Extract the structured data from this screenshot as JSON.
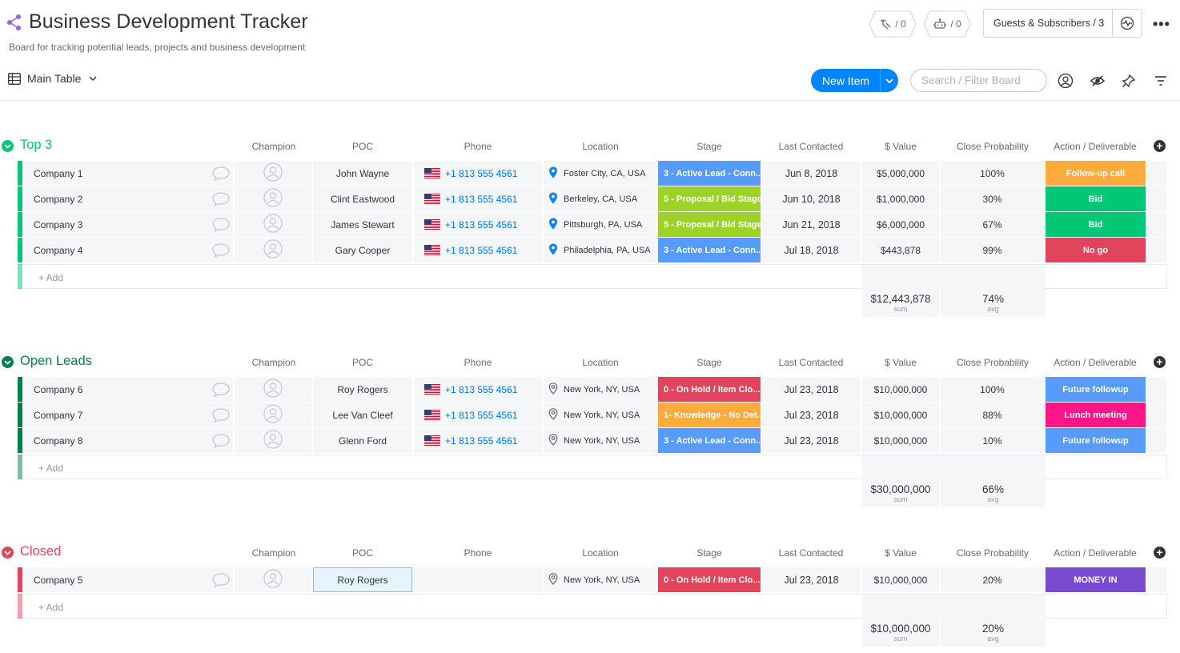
{
  "board": {
    "title": "Business Development Tracker",
    "description": "Board for tracking potential leads, projects and business development"
  },
  "header": {
    "activity_count": "/ 0",
    "integrations_count": "/ 0",
    "guests_label": "Guests & Subscribers / 3",
    "more_label": "•••"
  },
  "toolbar": {
    "view_label": "Main Table",
    "new_item_label": "New Item",
    "search_placeholder": "Search / Filter Board"
  },
  "columns": [
    "Champion",
    "POC",
    "Phone",
    "Location",
    "Stage",
    "Last Contacted",
    "$ Value",
    "Close Probability",
    "Action / Deliverable"
  ],
  "add_item_label": "+ Add",
  "sum_label": "sum",
  "avg_label": "avg",
  "colors": {
    "top3": "#00c875",
    "open_leads": "#037f4c",
    "closed": "#e2445c",
    "stage_active": "#579bfc",
    "stage_proposal": "#9cd326",
    "stage_hold": "#e2445c",
    "stage_knowledge": "#fdab3d",
    "act_followup_call": "#fdab3d",
    "act_bid": "#00c875",
    "act_nogo": "#e2445c",
    "act_future": "#579bfc",
    "act_lunch": "#ff158a",
    "act_money": "#784bd1",
    "link_blue": "#0073ea"
  },
  "groups": [
    {
      "name": "Top 3",
      "color": "#00c875",
      "rows": [
        {
          "company": "Company 1",
          "poc": "John Wayne",
          "phone": "+1 813 555 4561",
          "location": "Foster City, CA, USA",
          "location_set": true,
          "stage": "3 - Active Lead - Conn...",
          "stage_color": "#579bfc",
          "date": "Jun 8, 2018",
          "value": "$5,000,000",
          "prob": "100%",
          "action": "Follow-up call",
          "action_color": "#fdab3d"
        },
        {
          "company": "Company 2",
          "poc": "Clint Eastwood",
          "phone": "+1 813 555 4561",
          "location": "Berkeley, CA, USA",
          "location_set": true,
          "stage": "5 - Proposal / Bid Stage",
          "stage_color": "#9cd326",
          "date": "Jun 10, 2018",
          "value": "$1,000,000",
          "prob": "30%",
          "action": "Bid",
          "action_color": "#00c875"
        },
        {
          "company": "Company 3",
          "poc": "James Stewart",
          "phone": "+1 813 555 4561",
          "location": "Pittsburgh, PA, USA",
          "location_set": true,
          "stage": "5 - Proposal / Bid Stage",
          "stage_color": "#9cd326",
          "date": "Jun 21, 2018",
          "value": "$6,000,000",
          "prob": "67%",
          "action": "Bid",
          "action_color": "#00c875"
        },
        {
          "company": "Company 4",
          "poc": "Gary Cooper",
          "phone": "+1 813 555 4561",
          "location": "Philadelphia, PA, USA",
          "location_set": true,
          "stage": "3 - Active Lead - Conn...",
          "stage_color": "#579bfc",
          "date": "Jul 18, 2018",
          "value": "$443,878",
          "prob": "99%",
          "action": "No go",
          "action_color": "#e2445c"
        }
      ],
      "sum_value": "$12,443,878",
      "avg_prob": "74%"
    },
    {
      "name": "Open Leads",
      "color": "#037f4c",
      "rows": [
        {
          "company": "Company 6",
          "poc": "Roy Rogers",
          "phone": "+1 813 555 4561",
          "location": "New York, NY, USA",
          "location_set": false,
          "stage": "0 - On Hold / Item Clo...",
          "stage_color": "#e2445c",
          "date": "Jul 23, 2018",
          "value": "$10,000,000",
          "prob": "100%",
          "action": "Future followup",
          "action_color": "#579bfc"
        },
        {
          "company": "Company 7",
          "poc": "Lee Van Cleef",
          "phone": "+1 813 555 4561",
          "location": "New York, NY, USA",
          "location_set": false,
          "stage": "1- Knowledge - No Det...",
          "stage_color": "#fdab3d",
          "date": "Jul 23, 2018",
          "value": "$10,000,000",
          "prob": "88%",
          "action": "Lunch meeting",
          "action_color": "#ff158a"
        },
        {
          "company": "Company 8",
          "poc": "Glenn Ford",
          "phone": "+1 813 555 4561",
          "location": "New York, NY, USA",
          "location_set": false,
          "stage": "3 - Active Lead - Conn...",
          "stage_color": "#579bfc",
          "date": "Jul 23, 2018",
          "value": "$10,000,000",
          "prob": "10%",
          "action": "Future followup",
          "action_color": "#579bfc"
        }
      ],
      "sum_value": "$30,000,000",
      "avg_prob": "66%"
    },
    {
      "name": "Closed",
      "color": "#e2445c",
      "rows": [
        {
          "company": "Company 5",
          "poc": "Roy Rogers",
          "phone": "",
          "location": "New York, NY, USA",
          "location_set": false,
          "stage": "0 - On Hold / Item Clo...",
          "stage_color": "#e2445c",
          "date": "Jul 23, 2018",
          "value": "$10,000,000",
          "prob": "20%",
          "action": "MONEY IN",
          "action_color": "#784bd1"
        }
      ],
      "sum_value": "$10,000,000",
      "avg_prob": "20%"
    }
  ],
  "icons": [
    "share-icon",
    "activity-icon",
    "robot-icon",
    "invite-icon",
    "table-icon",
    "chevron-down-icon",
    "person-icon",
    "eye-off-icon",
    "pin-icon",
    "filter-icon",
    "chat-bubble-icon",
    "avatar-placeholder-icon",
    "us-flag-icon",
    "location-pin-icon",
    "add-column-icon",
    "collapse-toggle-icon"
  ]
}
